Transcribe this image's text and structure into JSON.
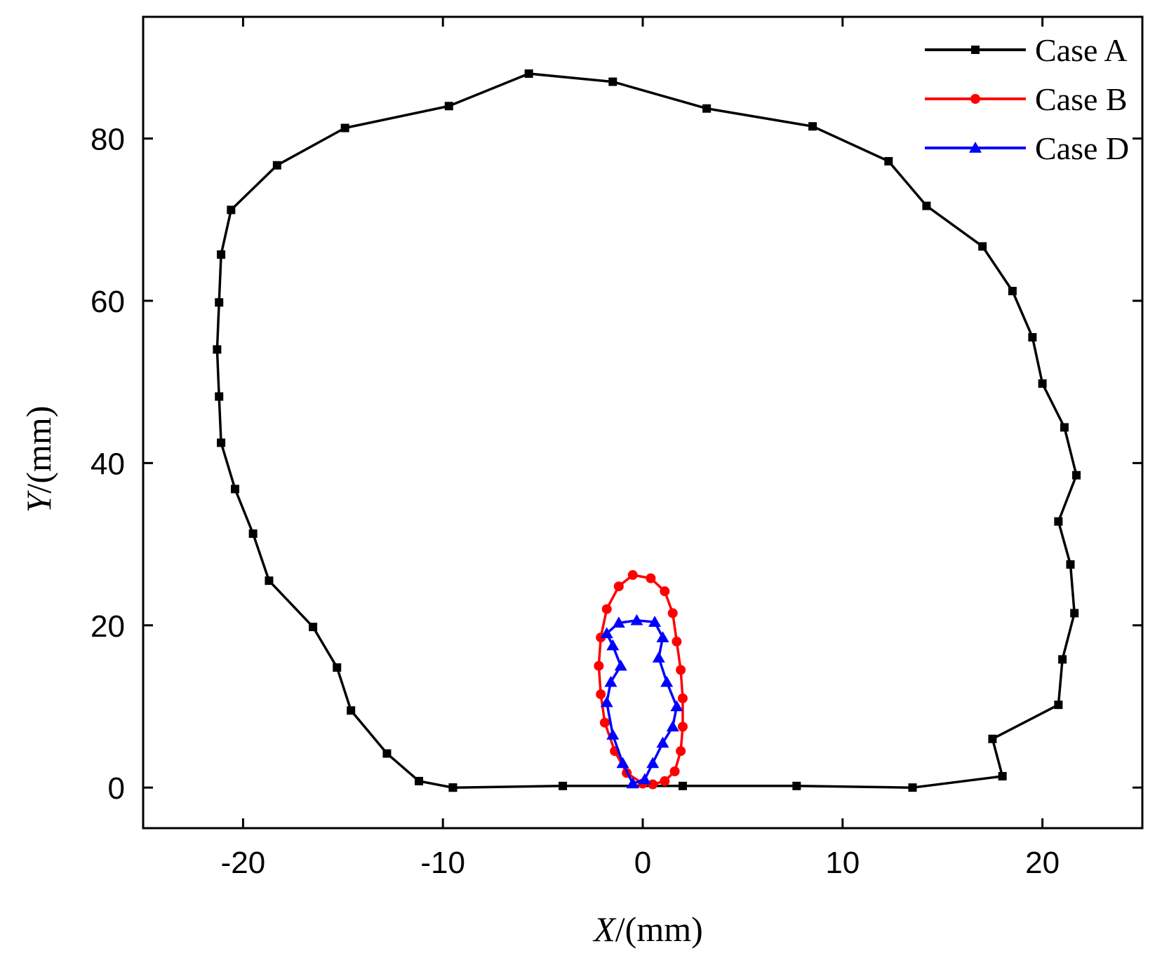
{
  "chart_data": {
    "type": "line",
    "title": "",
    "xlabel": "X/(mm)",
    "ylabel": "Y/(mm)",
    "xlim": [
      -25,
      25
    ],
    "ylim": [
      -5,
      95
    ],
    "xticks": [
      -20,
      -10,
      0,
      10,
      20
    ],
    "yticks": [
      0,
      20,
      40,
      60,
      80
    ],
    "legend_position": "top-right",
    "series": [
      {
        "name": "Case A",
        "color": "#000000",
        "marker": "square",
        "x": [
          -9.5,
          -11.2,
          -12.8,
          -14.6,
          -15.3,
          -16.5,
          -18.7,
          -19.5,
          -20.4,
          -21.1,
          -21.2,
          -21.3,
          -21.2,
          -21.1,
          -20.6,
          -18.3,
          -14.9,
          -9.7,
          -5.7,
          -1.5,
          3.2,
          8.5,
          12.3,
          14.2,
          17.0,
          18.5,
          19.5,
          20.0,
          21.1,
          21.7,
          20.8,
          21.4,
          21.6,
          21.0,
          20.8,
          17.5,
          18.0,
          13.5,
          7.7,
          2.0,
          -4.0,
          -9.5
        ],
        "y": [
          0,
          0.8,
          4.2,
          9.5,
          14.8,
          19.8,
          25.5,
          31.3,
          36.8,
          42.5,
          48.2,
          54.0,
          59.8,
          65.7,
          71.2,
          76.7,
          81.3,
          84.0,
          88.0,
          87.0,
          83.7,
          81.5,
          77.2,
          71.7,
          66.7,
          61.2,
          55.5,
          49.8,
          44.4,
          38.5,
          32.8,
          27.5,
          21.5,
          15.8,
          10.2,
          6.0,
          1.4,
          0,
          0.2,
          0.2,
          0.2,
          0
        ]
      },
      {
        "name": "Case B",
        "color": "#ff0000",
        "marker": "circle",
        "x": [
          0.0,
          -0.8,
          -1.4,
          -1.9,
          -2.1,
          -2.2,
          -2.1,
          -1.8,
          -1.2,
          -0.5,
          0.4,
          1.1,
          1.5,
          1.7,
          1.9,
          2.0,
          2.0,
          1.9,
          1.6,
          1.1,
          0.5,
          0.0
        ],
        "y": [
          0.5,
          1.8,
          4.5,
          8.0,
          11.5,
          15.0,
          18.5,
          22.0,
          24.8,
          26.2,
          25.8,
          24.2,
          21.5,
          18.0,
          14.5,
          11.0,
          7.5,
          4.5,
          2.0,
          0.8,
          0.4,
          0.5
        ]
      },
      {
        "name": "Case D",
        "color": "#0000ff",
        "marker": "triangle",
        "x": [
          -0.5,
          -1.0,
          -1.5,
          -1.8,
          -1.6,
          -1.1,
          -1.5,
          -1.8,
          -1.2,
          -0.3,
          0.6,
          1.0,
          0.8,
          1.2,
          1.7,
          1.5,
          1.0,
          0.5,
          0.1,
          -0.5
        ],
        "y": [
          0.5,
          3.0,
          6.5,
          10.5,
          13.0,
          15.0,
          17.5,
          19.0,
          20.3,
          20.6,
          20.4,
          18.5,
          16.0,
          13.0,
          10.0,
          7.5,
          5.5,
          3.0,
          1.0,
          0.5
        ]
      }
    ]
  }
}
